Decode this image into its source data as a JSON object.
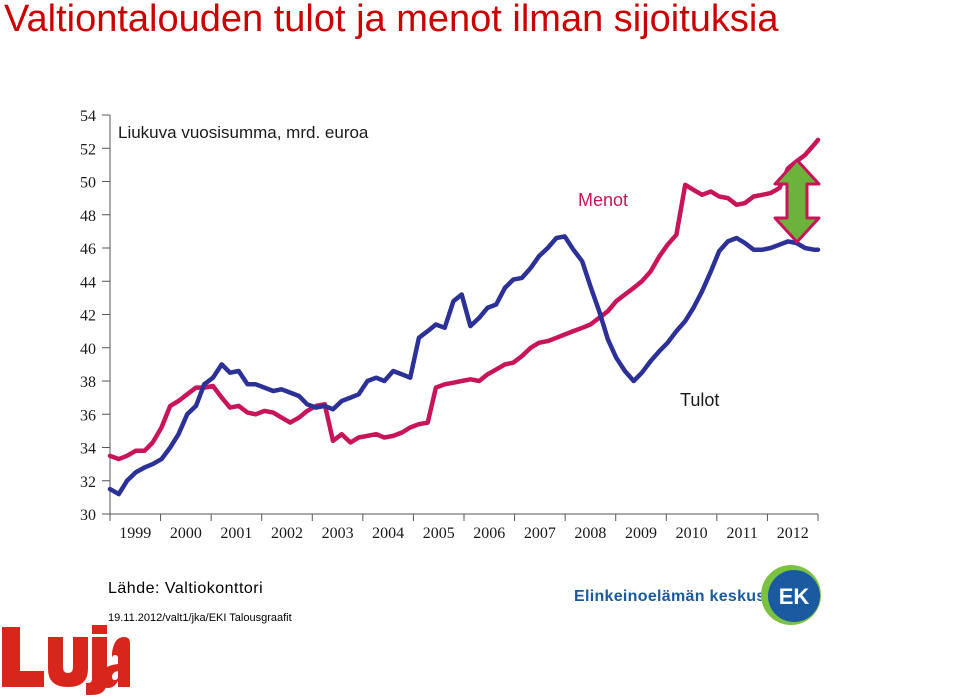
{
  "title": "Valtiontalouden tulot ja menot ilman sijoituksia",
  "source": "Lähde: Valtiokonttori",
  "footer": "19.11.2012/valt1/jka/EKI Talousgraafit",
  "logos": {
    "luja": "Luja",
    "ek_name": "Elinkeinoelämän keskusliitto",
    "ek_mark": "EK"
  },
  "colors": {
    "title": "#cc0000",
    "menot": "#c8145a",
    "tulot": "#2b3196",
    "arrow_fill": "#6bb33a",
    "arrow_stroke": "#c8145a",
    "luja_red": "#d9261c",
    "ek_blue": "#1a5aa0",
    "ek_green": "#7cc242"
  },
  "chart_data": {
    "type": "line",
    "subtitle": "Liukuva vuosisumma, mrd. euroa",
    "ylim": [
      30,
      54
    ],
    "yticks": [
      30,
      32,
      34,
      36,
      38,
      40,
      42,
      44,
      46,
      48,
      50,
      52,
      54
    ],
    "xlim": [
      1999.0,
      2012.75
    ],
    "xticks": [
      "1999",
      "2000",
      "2001",
      "2002",
      "2003",
      "2004",
      "2005",
      "2006",
      "2007",
      "2008",
      "2009",
      "2010",
      "2011",
      "2012"
    ],
    "grid": false,
    "series": [
      {
        "name": "Menot",
        "x": [
          1999.0,
          1999.17,
          1999.33,
          1999.5,
          1999.67,
          1999.83,
          2000.0,
          2000.17,
          2000.33,
          2000.5,
          2000.67,
          2000.83,
          2001.0,
          2001.17,
          2001.33,
          2001.5,
          2001.67,
          2001.83,
          2002.0,
          2002.17,
          2002.33,
          2002.5,
          2002.67,
          2002.83,
          2003.0,
          2003.17,
          2003.33,
          2003.5,
          2003.67,
          2003.83,
          2004.0,
          2004.17,
          2004.33,
          2004.5,
          2004.67,
          2004.83,
          2005.0,
          2005.17,
          2005.33,
          2005.5,
          2005.67,
          2005.83,
          2006.0,
          2006.17,
          2006.33,
          2006.5,
          2006.67,
          2006.83,
          2007.0,
          2007.17,
          2007.33,
          2007.5,
          2007.67,
          2007.83,
          2008.0,
          2008.17,
          2008.33,
          2008.5,
          2008.67,
          2008.83,
          2009.0,
          2009.17,
          2009.33,
          2009.5,
          2009.67,
          2009.83,
          2010.0,
          2010.17,
          2010.33,
          2010.5,
          2010.67,
          2010.83,
          2011.0,
          2011.17,
          2011.33,
          2011.5,
          2011.67,
          2011.83,
          2012.0,
          2012.17,
          2012.33,
          2012.5,
          2012.67,
          2012.75
        ],
        "values": [
          33.5,
          33.3,
          33.5,
          33.8,
          33.8,
          34.3,
          35.2,
          36.5,
          36.8,
          37.2,
          37.6,
          37.6,
          37.7,
          37.0,
          36.4,
          36.5,
          36.1,
          36.0,
          36.2,
          36.1,
          35.8,
          35.5,
          35.8,
          36.2,
          36.5,
          36.6,
          34.4,
          34.8,
          34.3,
          34.6,
          34.7,
          34.8,
          34.6,
          34.7,
          34.9,
          35.2,
          35.4,
          35.5,
          37.6,
          37.8,
          37.9,
          38.0,
          38.1,
          38.0,
          38.4,
          38.7,
          39.0,
          39.1,
          39.5,
          40.0,
          40.3,
          40.4,
          40.6,
          40.8,
          41.0,
          41.2,
          41.4,
          41.8,
          42.2,
          42.8,
          43.2,
          43.6,
          44.0,
          44.6,
          45.5,
          46.2,
          46.8,
          49.8,
          49.5,
          49.2,
          49.4,
          49.1,
          49.0,
          48.6,
          48.7,
          49.1,
          49.2,
          49.3,
          49.6,
          50.8,
          51.2,
          51.6,
          52.2,
          52.5
        ]
      },
      {
        "name": "Tulot",
        "x": [
          1999.0,
          1999.17,
          1999.33,
          1999.5,
          1999.67,
          1999.83,
          2000.0,
          2000.17,
          2000.33,
          2000.5,
          2000.67,
          2000.83,
          2001.0,
          2001.17,
          2001.33,
          2001.5,
          2001.67,
          2001.83,
          2002.0,
          2002.17,
          2002.33,
          2002.5,
          2002.67,
          2002.83,
          2003.0,
          2003.17,
          2003.33,
          2003.5,
          2003.67,
          2003.83,
          2004.0,
          2004.17,
          2004.33,
          2004.5,
          2004.67,
          2004.83,
          2005.0,
          2005.17,
          2005.33,
          2005.5,
          2005.67,
          2005.83,
          2006.0,
          2006.17,
          2006.33,
          2006.5,
          2006.67,
          2006.83,
          2007.0,
          2007.17,
          2007.33,
          2007.5,
          2007.67,
          2007.83,
          2008.0,
          2008.17,
          2008.33,
          2008.5,
          2008.67,
          2008.83,
          2009.0,
          2009.17,
          2009.33,
          2009.5,
          2009.67,
          2009.83,
          2010.0,
          2010.17,
          2010.33,
          2010.5,
          2010.67,
          2010.83,
          2011.0,
          2011.17,
          2011.33,
          2011.5,
          2011.67,
          2011.83,
          2012.0,
          2012.17,
          2012.33,
          2012.5,
          2012.67,
          2012.75
        ],
        "values": [
          31.5,
          31.2,
          32.0,
          32.5,
          32.8,
          33.0,
          33.3,
          34.0,
          34.8,
          36.0,
          36.5,
          37.8,
          38.2,
          39.0,
          38.5,
          38.6,
          37.8,
          37.8,
          37.6,
          37.4,
          37.5,
          37.3,
          37.1,
          36.6,
          36.4,
          36.5,
          36.3,
          36.8,
          37.0,
          37.2,
          38.0,
          38.2,
          38.0,
          38.6,
          38.4,
          38.2,
          40.6,
          41.0,
          41.4,
          41.2,
          42.8,
          43.2,
          41.3,
          41.8,
          42.4,
          42.6,
          43.6,
          44.1,
          44.2,
          44.8,
          45.5,
          46.0,
          46.6,
          46.7,
          45.9,
          45.2,
          43.7,
          42.2,
          40.5,
          39.4,
          38.6,
          38.0,
          38.5,
          39.2,
          39.8,
          40.3,
          41.0,
          41.6,
          42.4,
          43.4,
          44.6,
          45.8,
          46.4,
          46.6,
          46.3,
          45.9,
          45.9,
          46.0,
          46.2,
          46.4,
          46.3,
          46.0,
          45.9,
          45.9
        ]
      }
    ],
    "annotations": [
      {
        "text": "Menot"
      },
      {
        "text": "Tulot"
      }
    ]
  }
}
